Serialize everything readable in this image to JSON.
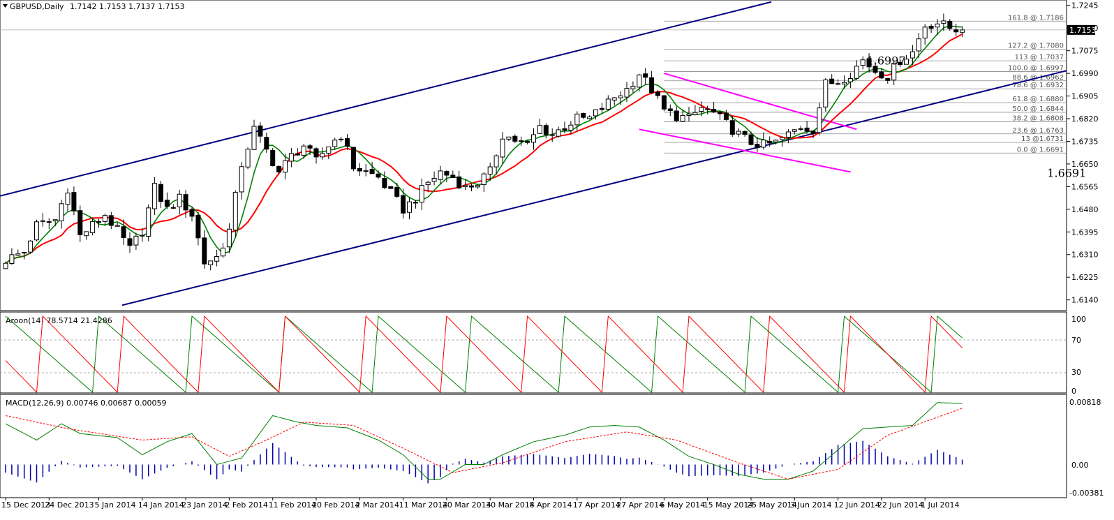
{
  "header": {
    "symbol": "GBPUSD,Daily",
    "ohlc": "1.7142 1.7153 1.7137 1.7153"
  },
  "price_panel": {
    "ylim": [
      1.6105,
      1.726
    ],
    "y_ticks": [
      "1.7245",
      "1.7160",
      "1.7075",
      "1.6990",
      "1.6905",
      "1.6820",
      "1.6735",
      "1.6650",
      "1.6565",
      "1.6480",
      "1.6395",
      "1.6310",
      "1.6225",
      "1.6140"
    ],
    "current_price": "1.7153",
    "annotations": [
      {
        "text": "1.6997",
        "price": 1.6997,
        "bar": 144
      },
      {
        "text": "1.6691",
        "price": 1.6691,
        "bar": 167
      }
    ],
    "fibonacci": [
      {
        "label": "161.8 @ 1.7186",
        "price": 1.7186
      },
      {
        "label": "127.2 @ 1.7080",
        "price": 1.708
      },
      {
        "label": "113 @ 1.7037",
        "price": 1.7037
      },
      {
        "label": "100.0 @ 1.6997",
        "price": 1.6997
      },
      {
        "label": "88.6 @ 1.6962",
        "price": 1.6962
      },
      {
        "label": "78.6 @ 1.6932",
        "price": 1.6932
      },
      {
        "label": "61.8 @ 1.6880",
        "price": 1.688
      },
      {
        "label": "50.0 @ 1.6844",
        "price": 1.6844
      },
      {
        "label": "38.2 @ 1.6808",
        "price": 1.6808
      },
      {
        "label": "23.6 @ 1.6763",
        "price": 1.6763
      },
      {
        "label": "13 @1.6731",
        "price": 1.6731
      },
      {
        "label": "0.0 @ 1.6691",
        "price": 1.6691
      }
    ]
  },
  "aroon_panel": {
    "label": "Aroon(14) 78.5714 21.4286",
    "ylim": [
      0,
      100
    ],
    "y_ticks": [
      "100",
      "70",
      "30",
      "0"
    ]
  },
  "macd_panel": {
    "label": "MACD(12,26,9) 0.00746 0.00687 0.00059",
    "ylim": [
      -0.00381,
      0.00818
    ],
    "y_ticks": [
      "0.00818",
      "0.00",
      "-0.00381"
    ]
  },
  "x_axis": {
    "ticks": [
      {
        "label": "15 Dec 2013",
        "bar": 0
      },
      {
        "label": "24 Dec 2013",
        "bar": 7
      },
      {
        "label": "5 Jan 2014",
        "bar": 15
      },
      {
        "label": "14 Jan 2014",
        "bar": 22
      },
      {
        "label": "23 Jan 2014",
        "bar": 29
      },
      {
        "label": "2 Feb 2014",
        "bar": 36
      },
      {
        "label": "11 Feb 2014",
        "bar": 43
      },
      {
        "label": "20 Feb 2014",
        "bar": 50
      },
      {
        "label": "2 Mar 2014",
        "bar": 57
      },
      {
        "label": "11 Mar 2014",
        "bar": 64
      },
      {
        "label": "20 Mar 2014",
        "bar": 71
      },
      {
        "label": "30 Mar 2014",
        "bar": 78
      },
      {
        "label": "8 Apr 2014",
        "bar": 85
      },
      {
        "label": "17 Apr 2014",
        "bar": 92
      },
      {
        "label": "27 Apr 2014",
        "bar": 99
      },
      {
        "label": "6 May 2014",
        "bar": 106
      },
      {
        "label": "15 May 2014",
        "bar": 113
      },
      {
        "label": "25 May 2014",
        "bar": 120
      },
      {
        "label": "3 Jun 2014",
        "bar": 127
      },
      {
        "label": "12 Jun 2014",
        "bar": 134
      },
      {
        "label": "22 Jun 2014",
        "bar": 141
      },
      {
        "label": "1 Jul 2014",
        "bar": 148
      }
    ]
  },
  "colors": {
    "up_candle": "#ffffff",
    "down_candle": "#000000",
    "channel": "#000080",
    "wedge": "#ff00ff",
    "fast_ma": "#ff0000",
    "slow_ma": "#008000",
    "macd_hist": "#0000aa",
    "macd_signal": "#ff0000",
    "aroon_up": "#008000",
    "aroon_down": "#ff0000"
  },
  "chart_data": {
    "type": "candlestick",
    "ohlc_keypoints": [
      [
        0,
        1.629
      ],
      [
        3,
        1.632
      ],
      [
        5,
        1.642
      ],
      [
        8,
        1.644
      ],
      [
        10,
        1.656
      ],
      [
        12,
        1.638
      ],
      [
        14,
        1.642
      ],
      [
        16,
        1.646
      ],
      [
        18,
        1.64
      ],
      [
        20,
        1.633
      ],
      [
        22,
        1.64
      ],
      [
        24,
        1.656
      ],
      [
        26,
        1.648
      ],
      [
        28,
        1.652
      ],
      [
        30,
        1.646
      ],
      [
        32,
        1.628
      ],
      [
        34,
        1.63
      ],
      [
        36,
        1.64
      ],
      [
        38,
        1.665
      ],
      [
        40,
        1.678
      ],
      [
        42,
        1.67
      ],
      [
        44,
        1.662
      ],
      [
        46,
        1.668
      ],
      [
        48,
        1.672
      ],
      [
        50,
        1.666
      ],
      [
        52,
        1.672
      ],
      [
        54,
        1.676
      ],
      [
        56,
        1.664
      ],
      [
        58,
        1.662
      ],
      [
        60,
        1.66
      ],
      [
        62,
        1.654
      ],
      [
        64,
        1.648
      ],
      [
        66,
        1.652
      ],
      [
        68,
        1.658
      ],
      [
        70,
        1.662
      ],
      [
        72,
        1.66
      ],
      [
        74,
        1.656
      ],
      [
        76,
        1.658
      ],
      [
        78,
        1.662
      ],
      [
        80,
        1.676
      ],
      [
        82,
        1.674
      ],
      [
        84,
        1.672
      ],
      [
        86,
        1.679
      ],
      [
        88,
        1.676
      ],
      [
        90,
        1.679
      ],
      [
        92,
        1.682
      ],
      [
        94,
        1.682
      ],
      [
        96,
        1.686
      ],
      [
        98,
        1.69
      ],
      [
        100,
        1.693
      ],
      [
        102,
        1.699
      ],
      [
        104,
        1.693
      ],
      [
        106,
        1.685
      ],
      [
        108,
        1.683
      ],
      [
        110,
        1.682
      ],
      [
        112,
        1.686
      ],
      [
        114,
        1.684
      ],
      [
        116,
        1.68
      ],
      [
        118,
        1.676
      ],
      [
        120,
        1.673
      ],
      [
        122,
        1.672
      ],
      [
        124,
        1.673
      ],
      [
        126,
        1.676
      ],
      [
        128,
        1.679
      ],
      [
        130,
        1.678
      ],
      [
        132,
        1.695
      ],
      [
        134,
        1.696
      ],
      [
        136,
        1.699
      ],
      [
        138,
        1.704
      ],
      [
        140,
        1.7
      ],
      [
        142,
        1.698
      ],
      [
        144,
        1.704
      ],
      [
        146,
        1.707
      ],
      [
        148,
        1.717
      ],
      [
        150,
        1.718
      ],
      [
        152,
        1.716
      ],
      [
        154,
        1.7153
      ]
    ],
    "macd_keypoints": [
      [
        0,
        0.005
      ],
      [
        5,
        0.003
      ],
      [
        9,
        0.005
      ],
      [
        12,
        0.0038
      ],
      [
        18,
        0.0033
      ],
      [
        22,
        0.0012
      ],
      [
        26,
        0.0028
      ],
      [
        30,
        0.0038
      ],
      [
        34,
        0.0
      ],
      [
        38,
        0.0008
      ],
      [
        43,
        0.006
      ],
      [
        47,
        0.0052
      ],
      [
        50,
        0.0048
      ],
      [
        55,
        0.0045
      ],
      [
        60,
        0.003
      ],
      [
        64,
        0.0012
      ],
      [
        68,
        -0.0018
      ],
      [
        70,
        -0.0018
      ],
      [
        74,
        0.0
      ],
      [
        77,
        0.0
      ],
      [
        80,
        0.0012
      ],
      [
        85,
        0.0028
      ],
      [
        90,
        0.0036
      ],
      [
        94,
        0.0046
      ],
      [
        98,
        0.0048
      ],
      [
        102,
        0.0046
      ],
      [
        106,
        0.003
      ],
      [
        110,
        0.001
      ],
      [
        114,
        0.0
      ],
      [
        118,
        -0.0012
      ],
      [
        122,
        -0.0018
      ],
      [
        126,
        -0.0018
      ],
      [
        130,
        -0.0008
      ],
      [
        134,
        0.0018
      ],
      [
        138,
        0.0044
      ],
      [
        142,
        0.0046
      ],
      [
        146,
        0.0048
      ],
      [
        150,
        0.0076
      ],
      [
        154,
        0.0075
      ]
    ],
    "signal_keypoints": [
      [
        0,
        0.006
      ],
      [
        10,
        0.0044
      ],
      [
        22,
        0.003
      ],
      [
        30,
        0.0034
      ],
      [
        36,
        0.001
      ],
      [
        42,
        0.003
      ],
      [
        48,
        0.0052
      ],
      [
        56,
        0.0048
      ],
      [
        64,
        0.002
      ],
      [
        72,
        -0.001
      ],
      [
        80,
        0.0002
      ],
      [
        90,
        0.0028
      ],
      [
        100,
        0.004
      ],
      [
        108,
        0.003
      ],
      [
        118,
        0.0002
      ],
      [
        126,
        -0.0018
      ],
      [
        134,
        -0.0006
      ],
      [
        142,
        0.0036
      ],
      [
        150,
        0.0058
      ],
      [
        154,
        0.0069
      ]
    ]
  }
}
